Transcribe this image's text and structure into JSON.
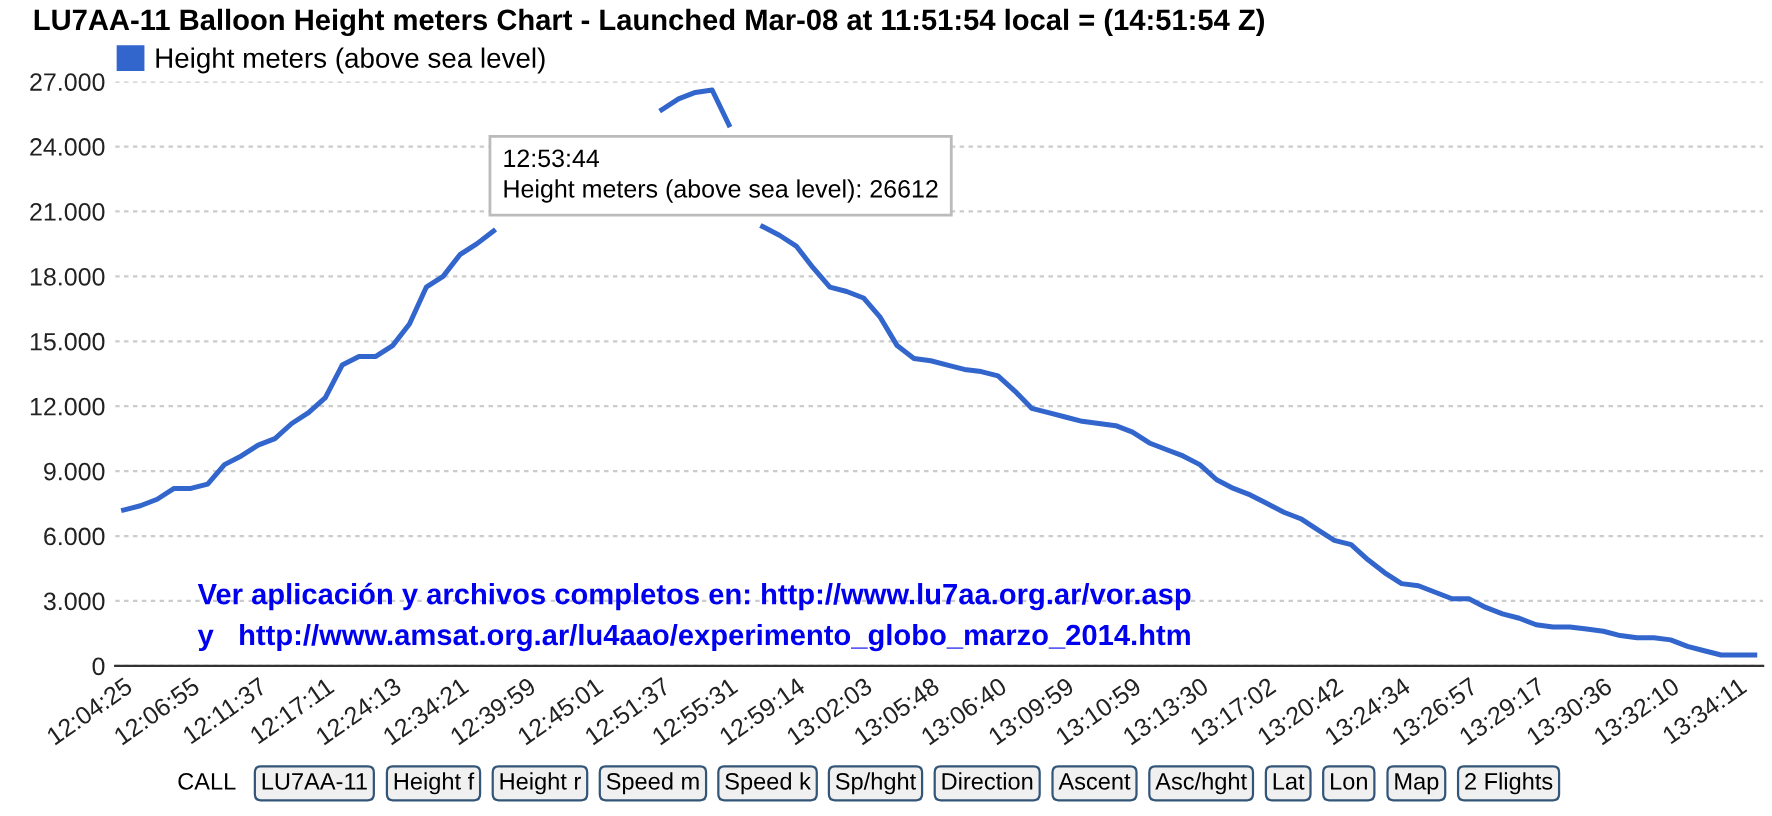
{
  "chart_data": {
    "type": "line",
    "title": "LU7AA-11 Balloon Height meters Chart - Launched Mar-08 at 11:51:54 local = (14:51:54 Z)",
    "categories": [
      "12:04:25",
      null,
      null,
      null,
      "12:06:55",
      null,
      null,
      null,
      "12:11:37",
      null,
      null,
      null,
      "12:17:11",
      null,
      null,
      null,
      "12:24:13",
      null,
      null,
      null,
      "12:34:21",
      null,
      null,
      null,
      "12:39:59",
      null,
      null,
      null,
      "12:45:01",
      null,
      null,
      null,
      "12:51:37",
      null,
      null,
      null,
      "12:55:31",
      null,
      null,
      null,
      "12:59:14",
      null,
      null,
      null,
      "13:02:03",
      null,
      null,
      null,
      "13:05:48",
      null,
      null,
      null,
      "13:06:40",
      null,
      null,
      null,
      "13:09:59",
      null,
      null,
      null,
      "13:10:59",
      null,
      null,
      null,
      "13:13:30",
      null,
      null,
      null,
      "13:17:02",
      null,
      null,
      null,
      "13:20:42",
      null,
      null,
      null,
      "13:24:34",
      null,
      null,
      null,
      "13:26:57",
      null,
      null,
      null,
      "13:29:17",
      null,
      null,
      null,
      "13:30:36",
      null,
      null,
      null,
      "13:32:10",
      null,
      null,
      null,
      "13:34:11",
      null
    ],
    "series": [
      {
        "name": "Height meters (above sea level)",
        "color": "#3366cc",
        "values": [
          7200,
          7400,
          7700,
          8200,
          8200,
          8400,
          9300,
          9700,
          10200,
          10500,
          11200,
          11700,
          12400,
          13900,
          14300,
          14300,
          14800,
          15800,
          17500,
          18000,
          19000,
          19500,
          20100,
          null,
          null,
          null,
          null,
          null,
          null,
          null,
          null,
          null,
          25700,
          26200,
          26500,
          26612,
          25000,
          null,
          20300,
          19900,
          19400,
          18400,
          17500,
          17300,
          17000,
          16100,
          14800,
          14200,
          14100,
          13900,
          13700,
          13600,
          13400,
          12700,
          11900,
          11700,
          11500,
          11300,
          11200,
          11100,
          10800,
          10300,
          10000,
          9700,
          9300,
          8600,
          8200,
          7900,
          7500,
          7100,
          6800,
          6300,
          5800,
          5600,
          4900,
          4300,
          3800,
          3700,
          3400,
          3100,
          3100,
          2700,
          2400,
          2200,
          1900,
          1800,
          1800,
          1700,
          1600,
          1400,
          1300,
          1300,
          1200,
          900,
          700,
          500,
          500,
          500
        ]
      }
    ],
    "ylim": [
      0,
      27000
    ],
    "yticks": [
      0,
      {
        "value": 3000,
        "label": "3.000"
      },
      {
        "value": 6000,
        "label": "6.000"
      },
      {
        "value": 9000,
        "label": "9.000"
      },
      {
        "value": 12000,
        "label": "12.000"
      },
      {
        "value": 15000,
        "label": "15.000"
      },
      {
        "value": 18000,
        "label": "18.000"
      },
      {
        "value": 21000,
        "label": "21.000"
      },
      {
        "value": 24000,
        "label": "24.000"
      },
      {
        "value": 27000,
        "label": "27.000"
      }
    ],
    "grid": "y",
    "legend": "top left",
    "marker": "none",
    "line_style": "solid",
    "annotations": [
      "12:53:44\nHeight meters (above sea level): 26612",
      "Ver aplicación y archivos completos en: http://www.lu7aa.org.ar/vor.asp",
      "y   http://www.amsat.org.ar/lu4aao/experimento_globo_marzo_2014.htm",
      "CALL",
      "LU7AA-11",
      "Height f",
      "Height r",
      "Speed m",
      "Speed k",
      "Sp/hght",
      "Direction",
      "Ascent",
      "Asc/hght",
      "Lat",
      "Lon",
      "Map",
      "2 Flights"
    ]
  }
}
